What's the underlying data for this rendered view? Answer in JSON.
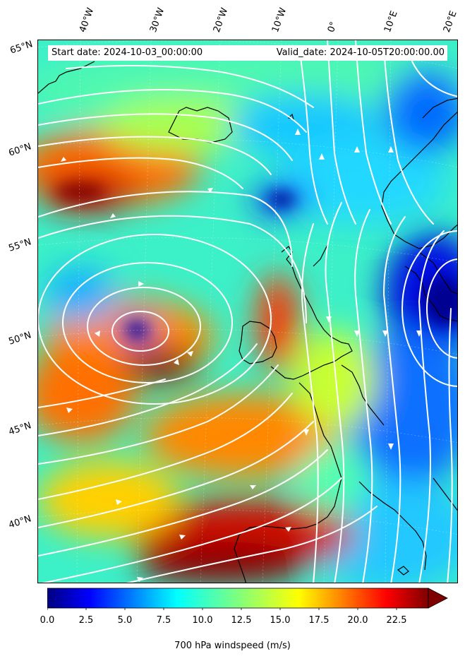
{
  "header": {
    "start_date": "Start date: 2024-10-03_00:00:00",
    "valid_date": "Valid_date: 2024-10-05T20:00:00.00"
  },
  "map": {
    "longitude_labels": [
      "40°W",
      "30°W",
      "20°W",
      "10°W",
      "0°",
      "10°E",
      "20°E"
    ],
    "latitude_labels": [
      "65°N",
      "60°N",
      "55°N",
      "50°N",
      "45°N",
      "40°N"
    ],
    "features": [
      "wind-speed-field",
      "streamlines",
      "coastlines",
      "graticule"
    ]
  },
  "colorbar": {
    "label": "700 hPa windspeed (m/s)",
    "ticks": [
      "0.0",
      "2.5",
      "5.0",
      "7.5",
      "10.0",
      "12.5",
      "15.0",
      "17.5",
      "20.0",
      "22.5"
    ],
    "colormap": [
      "#00007f",
      "#0000ff",
      "#007fff",
      "#00ffff",
      "#7fff7f",
      "#ffff00",
      "#ff7f00",
      "#ff0000",
      "#7f0000"
    ],
    "range": [
      0,
      25
    ],
    "extend": "max"
  }
}
